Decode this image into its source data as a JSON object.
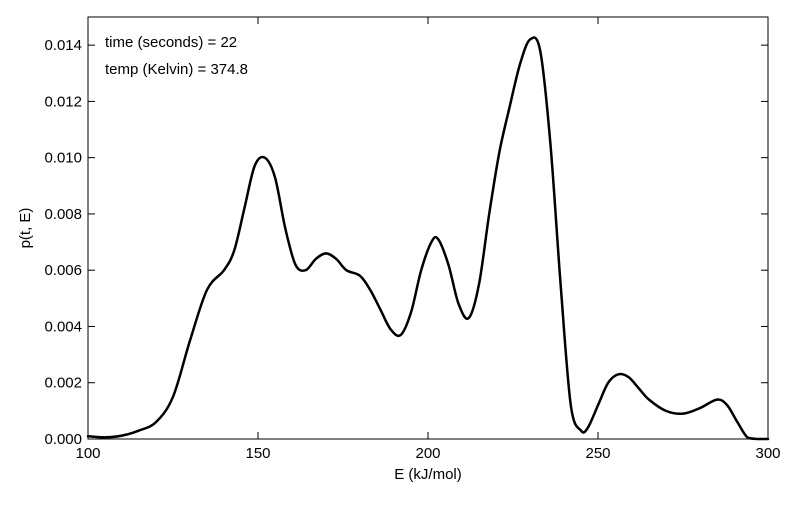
{
  "chart_data": {
    "type": "line",
    "title": "",
    "xlabel": "E (kJ/mol)",
    "ylabel": "p(t, E)",
    "xlim": [
      100,
      300
    ],
    "ylim": [
      0,
      0.015
    ],
    "xticks": [
      100,
      150,
      200,
      250,
      300
    ],
    "yticks": [
      0.0,
      0.002,
      0.004,
      0.006,
      0.008,
      0.01,
      0.012,
      0.014
    ],
    "ytick_decimals": 3,
    "grid": false,
    "annotations": [
      "time (seconds) = 22",
      "temp (Kelvin) = 374.8"
    ],
    "colors": {
      "line": "#000000",
      "axes": "#000000"
    },
    "series": [
      {
        "x": [
          100,
          105,
          110,
          115,
          120,
          125,
          130,
          135,
          140,
          143,
          146,
          149,
          152,
          155,
          158,
          161,
          164,
          167,
          170,
          173,
          176,
          180,
          183,
          186,
          189,
          192,
          195,
          198,
          201,
          203,
          206,
          209,
          212,
          215,
          218,
          221,
          224,
          227,
          230,
          233,
          236,
          239,
          242,
          245,
          247,
          250,
          253,
          256,
          259,
          262,
          265,
          270,
          275,
          280,
          285,
          288,
          291,
          294,
          297,
          300
        ],
        "y": [
          0.0001,
          6e-05,
          0.00012,
          0.0003,
          0.0006,
          0.0015,
          0.0035,
          0.0053,
          0.006,
          0.0067,
          0.0082,
          0.0097,
          0.01,
          0.0093,
          0.0075,
          0.0062,
          0.006,
          0.0064,
          0.0066,
          0.0064,
          0.006,
          0.0058,
          0.0053,
          0.0046,
          0.0039,
          0.0037,
          0.0045,
          0.006,
          0.007,
          0.0071,
          0.0062,
          0.0048,
          0.0043,
          0.0055,
          0.008,
          0.0102,
          0.0118,
          0.0133,
          0.0142,
          0.0138,
          0.0105,
          0.0055,
          0.0012,
          0.0003,
          0.0004,
          0.0012,
          0.002,
          0.0023,
          0.0022,
          0.0018,
          0.0014,
          0.001,
          0.0009,
          0.0011,
          0.0014,
          0.0012,
          0.0006,
          5e-05,
          0.0,
          0.0
        ]
      }
    ]
  }
}
